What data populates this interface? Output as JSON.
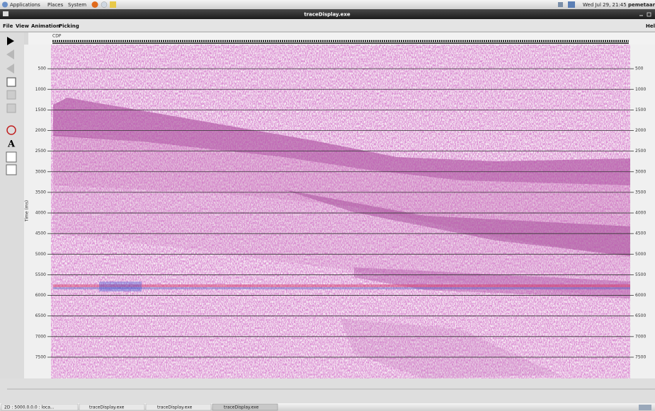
{
  "top_panel": {
    "menus": [
      "Applications",
      "Places",
      "System"
    ],
    "clock": "Wed Jul 29, 21:45",
    "user": "pemetaar"
  },
  "window": {
    "title": "traceDisplay.exe",
    "menu": [
      "File",
      "View",
      "Animation",
      "Picking"
    ],
    "help": "Hel"
  },
  "display": {
    "x_axis_label": "CDP",
    "y_axis_label": "Time (ms)",
    "time_ticks": [
      500,
      1000,
      1500,
      2000,
      2500,
      3000,
      3500,
      4000,
      4500,
      5000,
      5500,
      6000,
      6500,
      7000,
      7500
    ]
  },
  "taskbar": [
    "2D : 5000.0.0.0 : loca...",
    "traceDisplay.exe",
    "traceDisplay.exe",
    "traceDisplay.exe"
  ]
}
